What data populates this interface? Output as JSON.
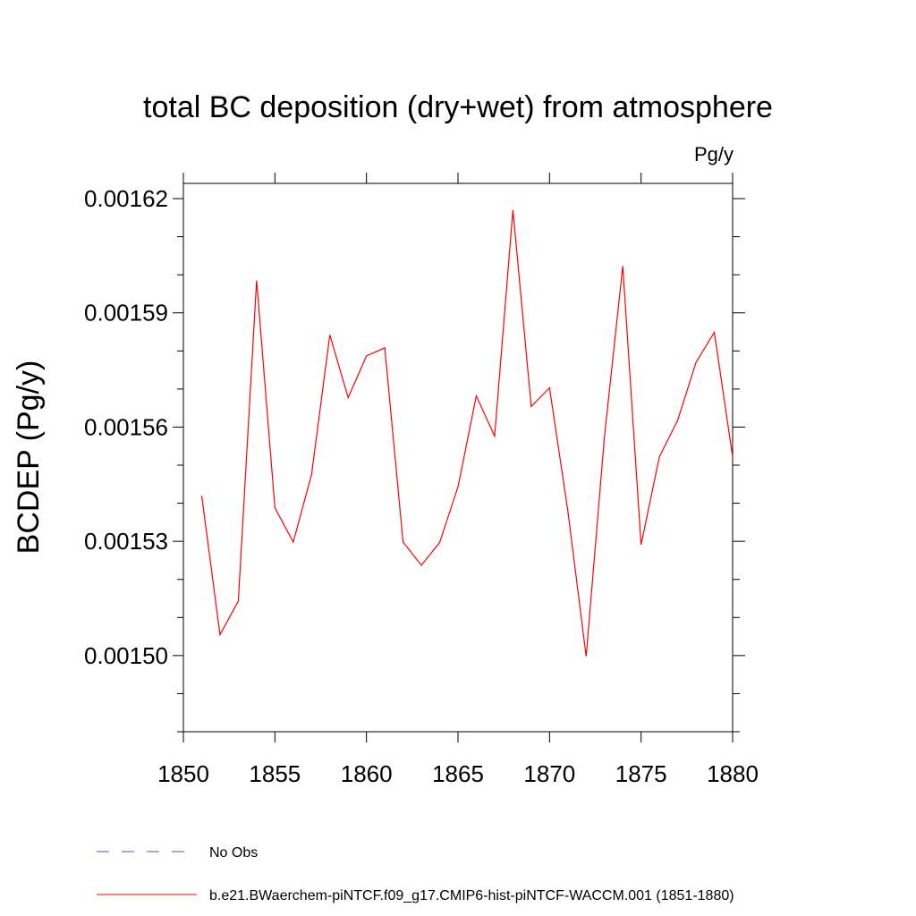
{
  "chart_data": {
    "type": "line",
    "title": "total BC deposition (dry+wet) from atmosphere",
    "units_label": "Pg/y",
    "xlabel": "",
    "ylabel": "BCDEP  (Pg/y)",
    "xlim": [
      1850,
      1880
    ],
    "ylim": [
      0.00148,
      0.001624
    ],
    "x_ticks": [
      1850,
      1855,
      1860,
      1865,
      1870,
      1875,
      1880
    ],
    "x_tick_labels": [
      "1850",
      "1855",
      "1860",
      "1865",
      "1870",
      "1875",
      "1880"
    ],
    "y_ticks": [
      0.0015,
      0.00153,
      0.00156,
      0.00159,
      0.00162
    ],
    "y_tick_labels": [
      "0.00150",
      "0.00153",
      "0.00156",
      "0.00159",
      "0.00162"
    ],
    "grid": false,
    "legend_position": "bottom",
    "series": [
      {
        "name": "b.e21.BWaerchem-piNTCF.f09_g17.CMIP6-hist-piNTCF-WACCM.001 (1851-1880)",
        "color": "#ff0000",
        "style": "solid",
        "x": [
          1851,
          1852,
          1853,
          1854,
          1855,
          1856,
          1857,
          1858,
          1859,
          1860,
          1861,
          1862,
          1863,
          1864,
          1865,
          1866,
          1867,
          1868,
          1869,
          1870,
          1871,
          1872,
          1873,
          1874,
          1875,
          1876,
          1877,
          1878,
          1879,
          1880
        ],
        "y": [
          0.001542,
          0.0015055,
          0.0015143,
          0.0015985,
          0.0015388,
          0.0015298,
          0.0015475,
          0.0015842,
          0.0015677,
          0.0015787,
          0.0015808,
          0.0015298,
          0.0015237,
          0.0015297,
          0.0015443,
          0.0015682,
          0.0015576,
          0.001617,
          0.0015654,
          0.0015703,
          0.001538,
          0.0014998,
          0.0015575,
          0.0016023,
          0.0015291,
          0.0015522,
          0.0015618,
          0.001577,
          0.0015849,
          0.0015522
        ]
      },
      {
        "name": "No Obs",
        "color": "#5a4ca8",
        "style": "dashed",
        "x": [],
        "y": []
      }
    ]
  }
}
